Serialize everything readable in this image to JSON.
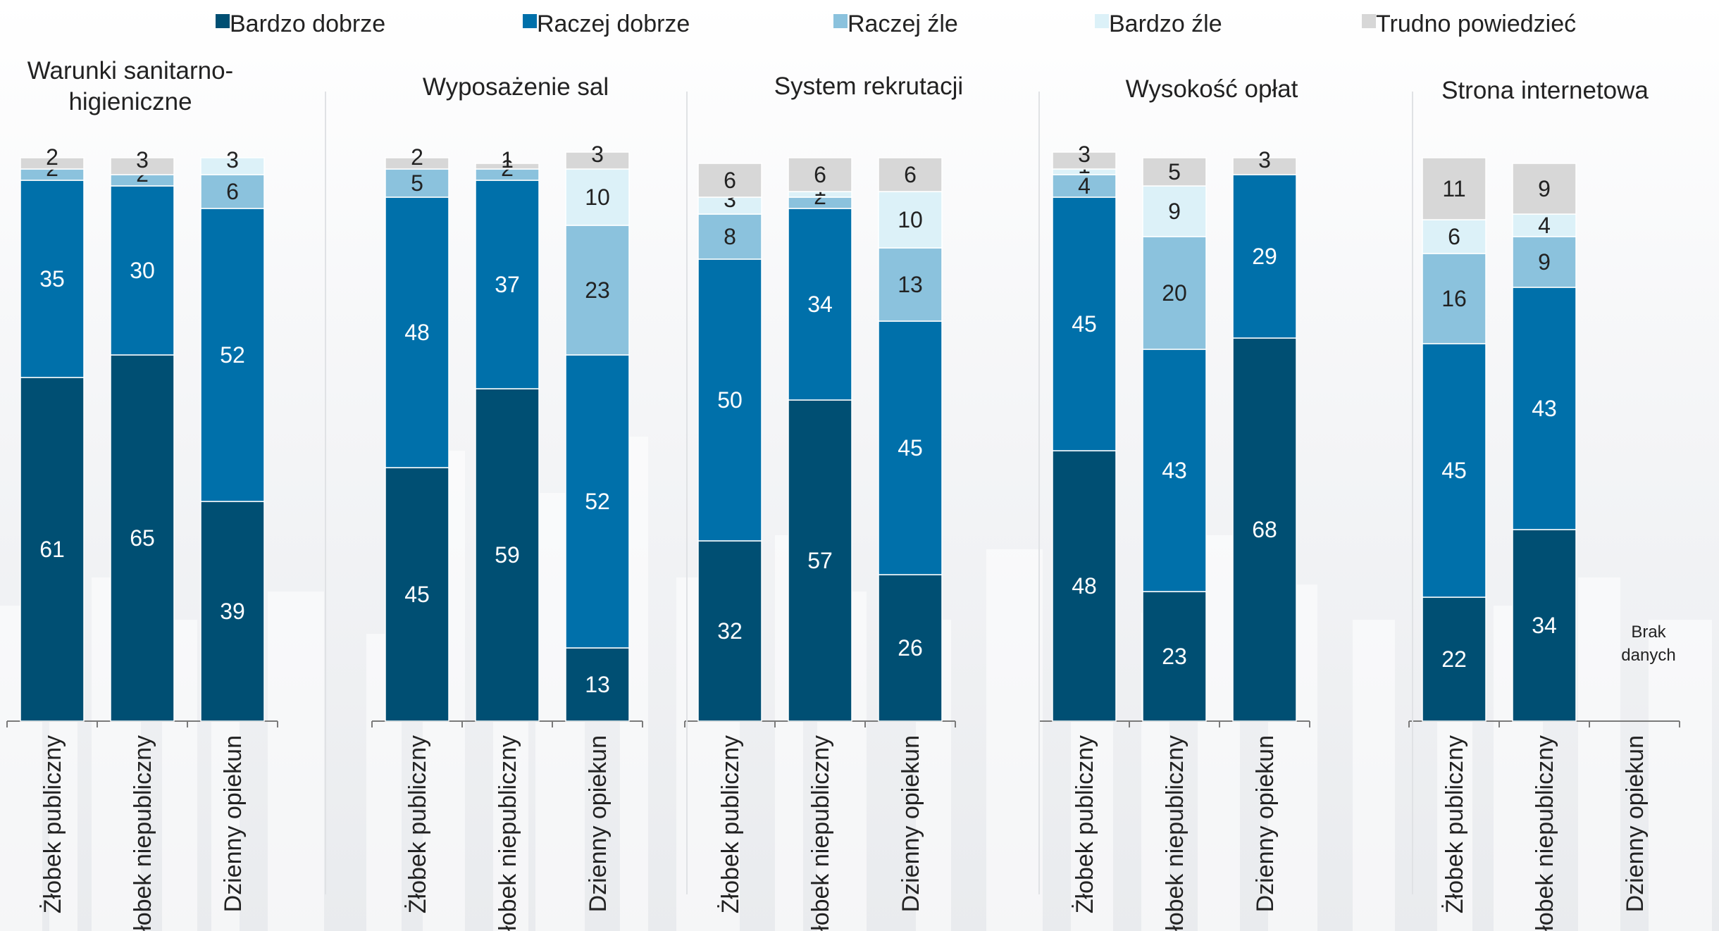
{
  "chart_data": {
    "type": "bar",
    "stacked": true,
    "unit": "%",
    "legend": {
      "placement": "top",
      "items": [
        {
          "name": "Bardzo dobrze",
          "color": "#004f73"
        },
        {
          "name": "Raczej dobrze",
          "color": "#0070aa"
        },
        {
          "name": "Raczej źle",
          "color": "#8bc2dd"
        },
        {
          "name": "Bardzo źle",
          "color": "#dcf1f8"
        },
        {
          "name": "Trudno powiedzieć",
          "color": "#d7d7d7"
        }
      ]
    },
    "panels": [
      {
        "title": "Warunki sanitarno-\nhigieniczne",
        "categories": [
          "Żłobek publiczny",
          "Żłobek niepubliczny",
          "Dzienny opiekun"
        ],
        "series": [
          {
            "name": "Bardzo dobrze",
            "values": [
              61,
              65,
              39
            ]
          },
          {
            "name": "Raczej dobrze",
            "values": [
              35,
              30,
              52
            ]
          },
          {
            "name": "Raczej źle",
            "values": [
              2,
              2,
              6
            ]
          },
          {
            "name": "Bardzo źle",
            "values": [
              0,
              0,
              3
            ]
          },
          {
            "name": "Trudno powiedzieć",
            "values": [
              2,
              3,
              0
            ]
          }
        ]
      },
      {
        "title": "Wyposażenie sal",
        "categories": [
          "Żłobek publiczny",
          "Żłobek niepubliczny",
          "Dzienny opiekun"
        ],
        "series": [
          {
            "name": "Bardzo dobrze",
            "values": [
              45,
              59,
              13
            ]
          },
          {
            "name": "Raczej dobrze",
            "values": [
              48,
              37,
              52
            ]
          },
          {
            "name": "Raczej źle",
            "values": [
              5,
              2,
              23
            ]
          },
          {
            "name": "Bardzo źle",
            "values": [
              0,
              0,
              10
            ]
          },
          {
            "name": "Trudno powiedzieć",
            "values": [
              2,
              1,
              3
            ]
          }
        ]
      },
      {
        "title": "System rekrutacji",
        "categories": [
          "Żłobek publiczny",
          "Żłobek niepubliczny",
          "Dzienny opiekun"
        ],
        "series": [
          {
            "name": "Bardzo dobrze",
            "values": [
              32,
              57,
              26
            ]
          },
          {
            "name": "Raczej dobrze",
            "values": [
              50,
              34,
              45
            ]
          },
          {
            "name": "Raczej źle",
            "values": [
              8,
              2,
              13
            ]
          },
          {
            "name": "Bardzo źle",
            "values": [
              3,
              1,
              10
            ]
          },
          {
            "name": "Trudno powiedzieć",
            "values": [
              6,
              6,
              6
            ]
          }
        ]
      },
      {
        "title": "Wysokość opłat",
        "categories": [
          "Żłobek publiczny",
          "Żłobek niepubliczny",
          "Dzienny opiekun"
        ],
        "series": [
          {
            "name": "Bardzo dobrze",
            "values": [
              48,
              23,
              68
            ]
          },
          {
            "name": "Raczej dobrze",
            "values": [
              45,
              43,
              29
            ]
          },
          {
            "name": "Raczej źle",
            "values": [
              4,
              20,
              0
            ]
          },
          {
            "name": "Bardzo źle",
            "values": [
              1,
              9,
              0
            ]
          },
          {
            "name": "Trudno powiedzieć",
            "values": [
              3,
              5,
              3
            ]
          }
        ]
      },
      {
        "title": "Strona internetowa",
        "categories": [
          "Żłobek publiczny",
          "Żłobek niepubliczny",
          "Dzienny opiekun"
        ],
        "series": [
          {
            "name": "Bardzo dobrze",
            "values": [
              22,
              34,
              null
            ]
          },
          {
            "name": "Raczej dobrze",
            "values": [
              45,
              43,
              null
            ]
          },
          {
            "name": "Raczej źle",
            "values": [
              16,
              9,
              null
            ]
          },
          {
            "name": "Bardzo źle",
            "values": [
              6,
              4,
              null
            ]
          },
          {
            "name": "Trudno powiedzieć",
            "values": [
              11,
              9,
              null
            ]
          }
        ],
        "notes": [
          {
            "category": "Dzienny opiekun",
            "text": "Brak\ndanych"
          }
        ]
      }
    ],
    "ylim": [
      0,
      100
    ],
    "grid": false
  }
}
